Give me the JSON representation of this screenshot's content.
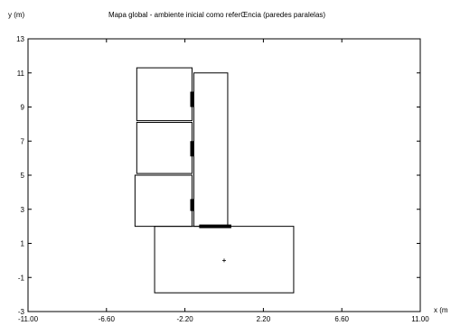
{
  "chart_data": {
    "type": "plot",
    "title": "Mapa global - ambiente inicial como referŒncia (paredes paralelas)",
    "xlabel": "x (m",
    "ylabel": "y (m)",
    "xlim": [
      -11.0,
      11.0
    ],
    "ylim": [
      -3,
      13
    ],
    "x_ticks": [
      {
        "value": -11.0,
        "label": "-11.00"
      },
      {
        "value": -6.6,
        "label": "-6.60"
      },
      {
        "value": -2.2,
        "label": "-2.20"
      },
      {
        "value": 2.2,
        "label": "2.20"
      },
      {
        "value": 6.6,
        "label": "6.60"
      },
      {
        "value": 11.0,
        "label": "11.00"
      }
    ],
    "y_ticks": [
      {
        "value": -3,
        "label": "-3"
      },
      {
        "value": -1,
        "label": "-1"
      },
      {
        "value": 1,
        "label": "1"
      },
      {
        "value": 3,
        "label": "3"
      },
      {
        "value": 5,
        "label": "5"
      },
      {
        "value": 7,
        "label": "7"
      },
      {
        "value": 9,
        "label": "9"
      },
      {
        "value": 11,
        "label": "11"
      },
      {
        "value": 13,
        "label": "13"
      }
    ],
    "rectangles": [
      {
        "name": "room-1",
        "x0": -3.9,
        "x1": 3.9,
        "y0": -1.9,
        "y1": 2.0
      },
      {
        "name": "corridor",
        "x0": -1.7,
        "x1": 0.2,
        "y0": 2.0,
        "y1": 11.0
      },
      {
        "name": "room-2",
        "x0": -5.0,
        "x1": -1.8,
        "y0": 2.0,
        "y1": 5.0
      },
      {
        "name": "room-3",
        "x0": -4.9,
        "x1": -1.8,
        "y0": 5.1,
        "y1": 8.1
      },
      {
        "name": "room-4",
        "x0": -4.9,
        "x1": -1.8,
        "y0": 8.2,
        "y1": 11.3
      }
    ],
    "doors": [
      {
        "name": "door-main",
        "x0": -1.4,
        "x1": 0.4,
        "y0": 2.0,
        "y1": 2.0
      },
      {
        "name": "door-lower",
        "x0": -1.8,
        "x1": -1.8,
        "y0": 2.9,
        "y1": 3.6
      },
      {
        "name": "door-middle",
        "x0": -1.8,
        "x1": -1.8,
        "y0": 6.1,
        "y1": 7.0
      },
      {
        "name": "door-upper",
        "x0": -1.8,
        "x1": -1.8,
        "y0": 9.0,
        "y1": 9.9
      }
    ],
    "markers": [
      {
        "name": "center-marker",
        "x": 0.0,
        "y": 0.0,
        "symbol": "+"
      }
    ]
  }
}
